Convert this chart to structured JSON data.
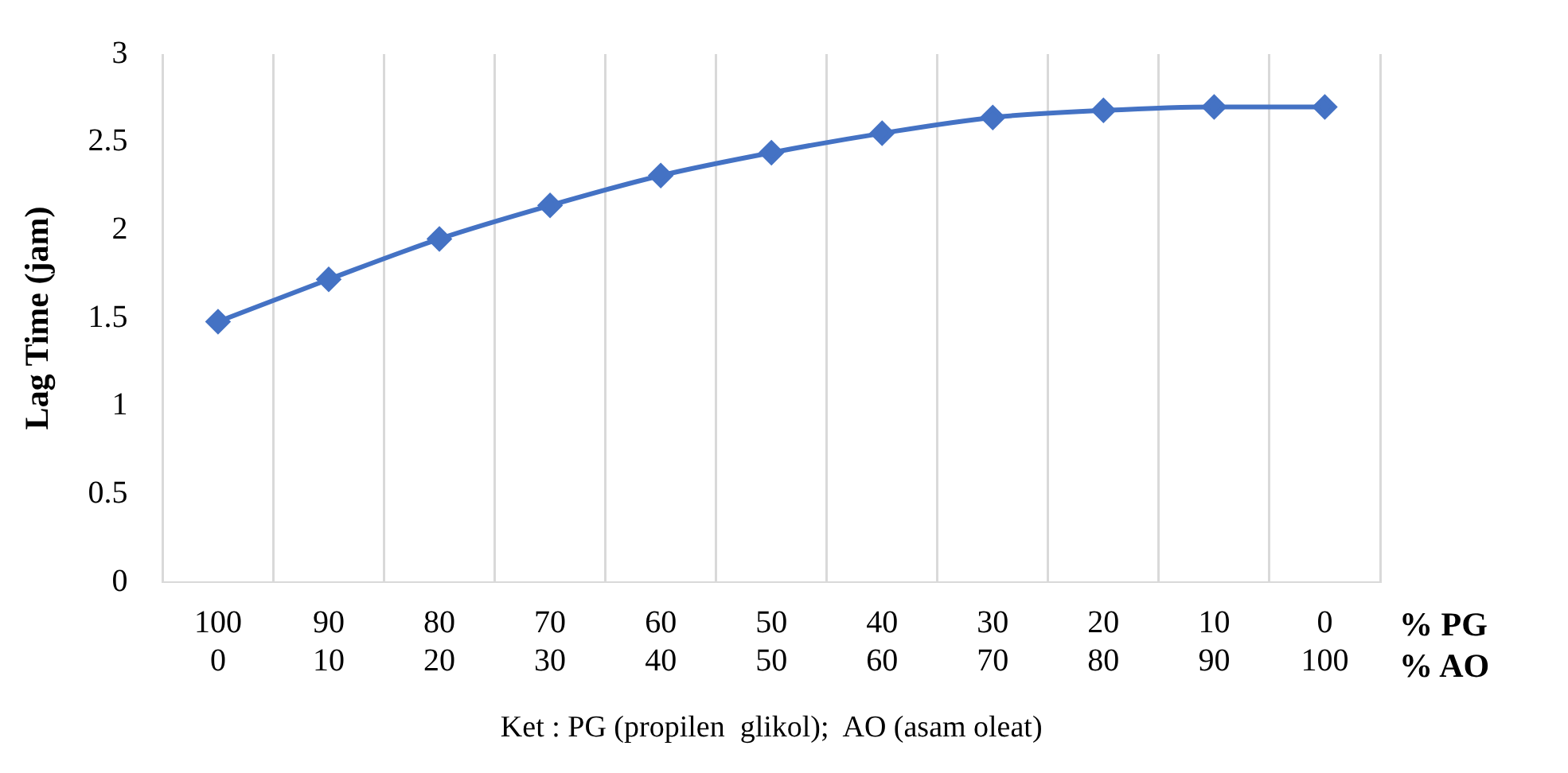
{
  "chart_data": {
    "type": "line",
    "ylabel": "Lag Time (jam)",
    "categories": [
      "100\n0",
      "90\n10",
      "80\n20",
      "70\n30",
      "60\n40",
      "50\n50",
      "40\n60",
      "30\n70",
      "20\n80",
      "10\n90",
      "0\n100"
    ],
    "series": [
      {
        "color": "#4472c4",
        "values": [
          1.48,
          1.72,
          1.95,
          2.14,
          2.31,
          2.44,
          2.55,
          2.64,
          2.68,
          2.7,
          2.7
        ]
      }
    ],
    "ylim": [
      0,
      3
    ],
    "yticks": [
      0,
      0.5,
      1,
      1.5,
      2,
      2.5,
      3
    ],
    "grid": "x",
    "marker": "diamond",
    "line_style": "solid",
    "legend": false,
    "annotations": [
      "% PG",
      "% AO",
      "Ket : PG (propilen  glikol);  AO (asam oleat)"
    ]
  }
}
